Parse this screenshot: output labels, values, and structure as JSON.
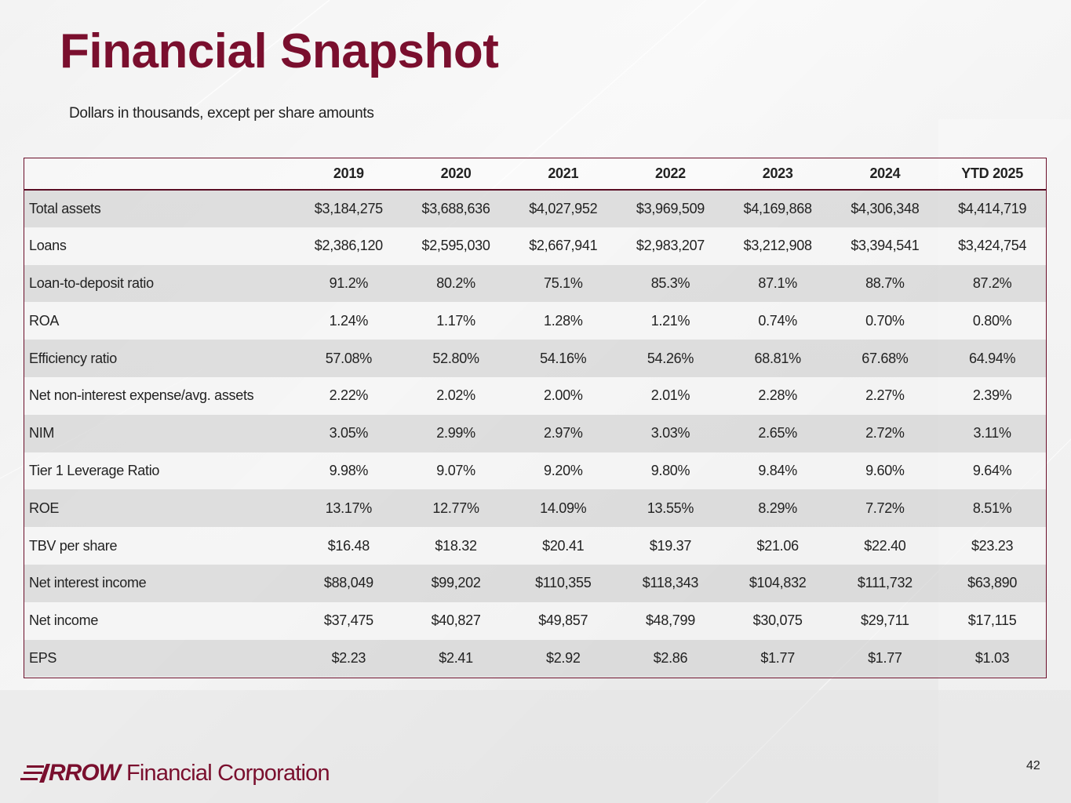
{
  "slide": {
    "title": "Financial Snapshot",
    "subtitle": "Dollars in thousands, except per share amounts",
    "page_number": "42"
  },
  "table": {
    "columns": [
      "2019",
      "2020",
      "2021",
      "2022",
      "2023",
      "2024",
      "YTD 2025"
    ],
    "rows": [
      {
        "label": "Total assets",
        "values": [
          "$3,184,275",
          "$3,688,636",
          "$4,027,952",
          "$3,969,509",
          "$4,169,868",
          "$4,306,348",
          "$4,414,719"
        ]
      },
      {
        "label": "Loans",
        "values": [
          "$2,386,120",
          "$2,595,030",
          "$2,667,941",
          "$2,983,207",
          "$3,212,908",
          "$3,394,541",
          "$3,424,754"
        ]
      },
      {
        "label": "Loan-to-deposit ratio",
        "values": [
          "91.2%",
          "80.2%",
          "75.1%",
          "85.3%",
          "87.1%",
          "88.7%",
          "87.2%"
        ]
      },
      {
        "label": "ROA",
        "values": [
          "1.24%",
          "1.17%",
          "1.28%",
          "1.21%",
          "0.74%",
          "0.70%",
          "0.80%"
        ]
      },
      {
        "label": "Efficiency ratio",
        "values": [
          "57.08%",
          "52.80%",
          "54.16%",
          "54.26%",
          "68.81%",
          "67.68%",
          "64.94%"
        ]
      },
      {
        "label": "Net non-interest expense/avg. assets",
        "values": [
          "2.22%",
          "2.02%",
          "2.00%",
          "2.01%",
          "2.28%",
          "2.27%",
          "2.39%"
        ]
      },
      {
        "label": "NIM",
        "values": [
          "3.05%",
          "2.99%",
          "2.97%",
          "3.03%",
          "2.65%",
          "2.72%",
          "3.11%"
        ]
      },
      {
        "label": "Tier 1 Leverage Ratio",
        "values": [
          "9.98%",
          "9.07%",
          "9.20%",
          "9.80%",
          "9.84%",
          "9.60%",
          "9.64%"
        ]
      },
      {
        "label": "ROE",
        "values": [
          "13.17%",
          "12.77%",
          "14.09%",
          "13.55%",
          "8.29%",
          "7.72%",
          "8.51%"
        ]
      },
      {
        "label": "TBV per share",
        "values": [
          "$16.48",
          "$18.32",
          "$20.41",
          "$19.37",
          "$21.06",
          "$22.40",
          "$23.23"
        ]
      },
      {
        "label": "Net interest income",
        "values": [
          "$88,049",
          "$99,202",
          "$110,355",
          "$118,343",
          "$104,832",
          "$111,732",
          "$63,890"
        ]
      },
      {
        "label": "Net income",
        "values": [
          "$37,475",
          "$40,827",
          "$49,857",
          "$48,799",
          "$30,075",
          "$29,711",
          "$17,115"
        ]
      },
      {
        "label": "EPS",
        "values": [
          "$2.23",
          "$2.41",
          "$2.92",
          "$2.86",
          "$1.77",
          "$1.77",
          "$1.03"
        ]
      }
    ]
  },
  "logo": {
    "word": "RROW",
    "rest": "Financial Corporation"
  },
  "colors": {
    "brand": "#7a0f2e",
    "text": "#222222"
  }
}
